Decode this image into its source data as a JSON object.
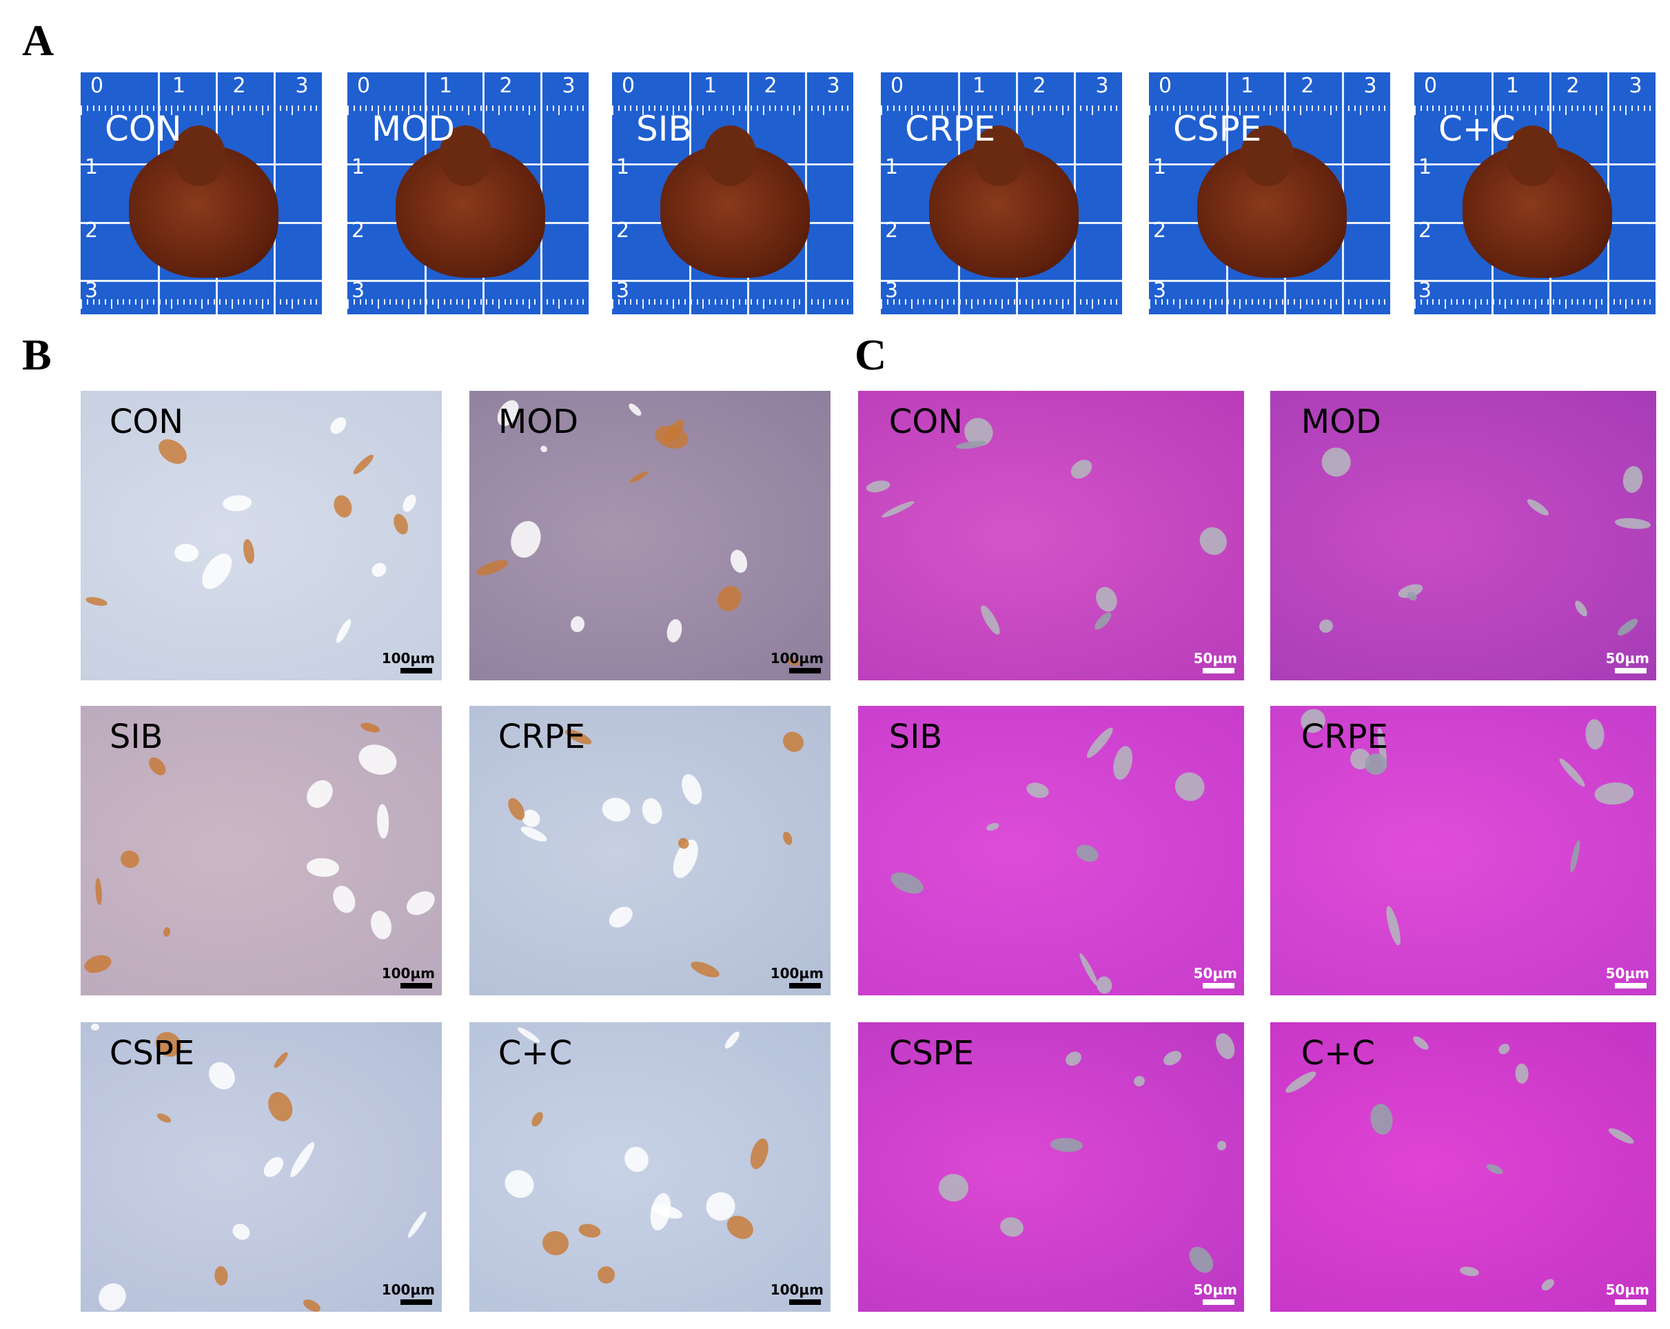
{
  "figure": {
    "a": {
      "label": "A",
      "ruler_top": [
        "0",
        "1",
        "2",
        "3"
      ],
      "ruler_side": [
        "1",
        "2",
        "3"
      ],
      "groups": [
        "CON",
        "MOD",
        "SIB",
        "CRPE",
        "CSPE",
        "C+C"
      ]
    },
    "b": {
      "label": "B",
      "scale_bar": "100µm",
      "groups": [
        "CON",
        "MOD",
        "SIB",
        "CRPE",
        "CSPE",
        "C+C"
      ]
    },
    "c": {
      "label": "C",
      "scale_bar": "50µm",
      "groups": [
        "CON",
        "MOD",
        "SIB",
        "CRPE",
        "CSPE",
        "C+C"
      ]
    }
  }
}
